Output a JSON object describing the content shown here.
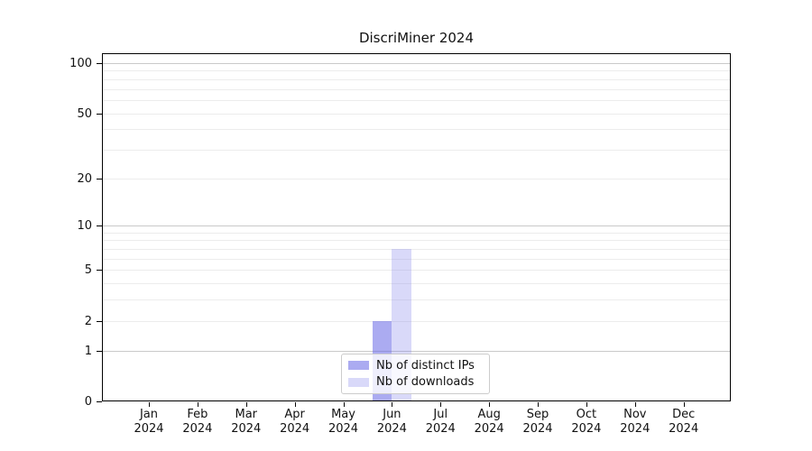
{
  "chart_data": {
    "type": "bar",
    "title": "DiscriMiner 2024",
    "categories": [
      "Jan 2024",
      "Feb 2024",
      "Mar 2024",
      "Apr 2024",
      "May 2024",
      "Jun 2024",
      "Jul 2024",
      "Aug 2024",
      "Sep 2024",
      "Oct 2024",
      "Nov 2024",
      "Dec 2024"
    ],
    "series": [
      {
        "name": "Nb of distinct IPs",
        "color": "#6666e6",
        "opacity": 0.55,
        "rendered_hex": "#aaaaf0",
        "values": [
          0,
          0,
          0,
          0,
          0,
          2,
          0,
          0,
          0,
          0,
          0,
          0
        ]
      },
      {
        "name": "Nb of downloads",
        "color": "#8282eb",
        "opacity": 0.3,
        "rendered_hex": "#dadaf8",
        "values": [
          0,
          0,
          0,
          0,
          0,
          7,
          0,
          0,
          0,
          0,
          0,
          0
        ]
      }
    ],
    "xlabel": "",
    "ylabel": "",
    "y_scale": "log1p",
    "ylim": [
      0,
      115
    ],
    "y_ticks_labeled": [
      0,
      1,
      2,
      5,
      10,
      20,
      50,
      100
    ],
    "y_gridlines_major": [
      1,
      10,
      100
    ],
    "y_gridlines_minor": [
      2,
      3,
      4,
      5,
      6,
      7,
      8,
      9,
      20,
      30,
      40,
      50,
      60,
      70,
      80,
      90
    ],
    "grid": true,
    "legend_position": "lower center",
    "colors": {
      "axis": "#000000",
      "major_grid": "#c9c9c9",
      "minor_grid": "#ececec",
      "legend_border": "#cccccc",
      "text": "#111111"
    }
  }
}
